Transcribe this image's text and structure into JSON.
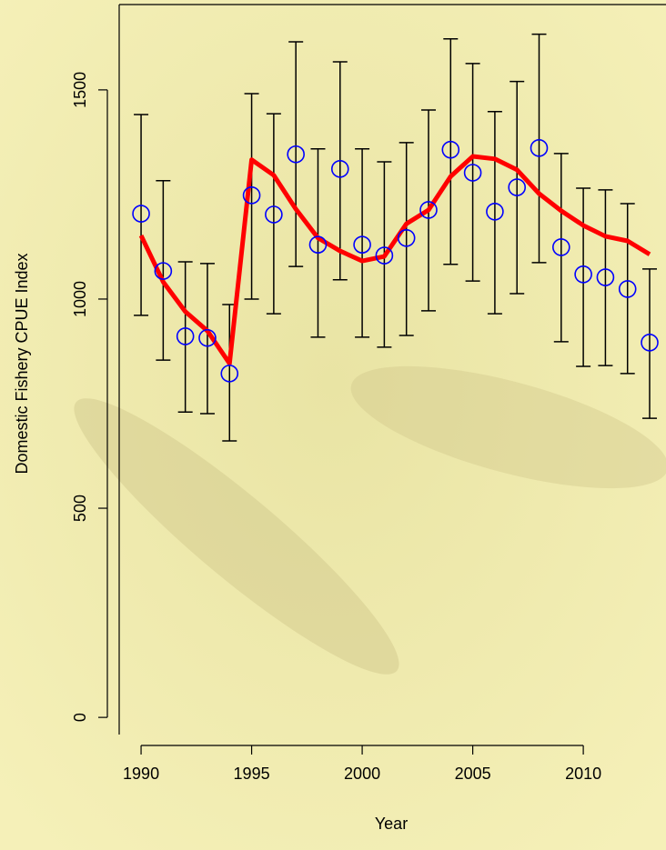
{
  "chart_data": {
    "type": "scatter",
    "x_label": "Year",
    "y_label": "Domestic Fishery CPUE Index",
    "x": [
      1990,
      1991,
      1992,
      1993,
      1994,
      1995,
      1996,
      1997,
      1998,
      1999,
      2000,
      2001,
      2002,
      2003,
      2004,
      2005,
      2006,
      2007,
      2008,
      2009,
      2010,
      2011,
      2012,
      2013
    ],
    "points": {
      "color": "#0000ff",
      "values": [
        1204,
        1067,
        911,
        907,
        822,
        1248,
        1202,
        1346,
        1130,
        1311,
        1130,
        1104,
        1146,
        1213,
        1357,
        1302,
        1209,
        1267,
        1361,
        1124,
        1059,
        1052,
        1024,
        896
      ],
      "lower": [
        961,
        854,
        730,
        726,
        661,
        1000,
        965,
        1078,
        909,
        1046,
        909,
        885,
        913,
        972,
        1083,
        1043,
        965,
        1013,
        1087,
        898,
        839,
        841,
        822,
        715
      ],
      "upper": [
        1441,
        1283,
        1089,
        1085,
        987,
        1491,
        1443,
        1615,
        1359,
        1567,
        1359,
        1328,
        1374,
        1452,
        1622,
        1563,
        1448,
        1520,
        1633,
        1348,
        1265,
        1261,
        1228,
        1072
      ]
    },
    "fit": {
      "color": "#ff0000",
      "values": [
        1152,
        1041,
        970,
        924,
        846,
        1333,
        1296,
        1215,
        1146,
        1115,
        1091,
        1102,
        1180,
        1213,
        1293,
        1341,
        1335,
        1309,
        1252,
        1211,
        1176,
        1150,
        1139,
        1107
      ]
    },
    "xlim": [
      1989.01,
      2013.74
    ],
    "ylim": [
      -41,
      1704
    ],
    "xticks": [
      1990,
      1995,
      2000,
      2005,
      2010
    ],
    "yticks": [
      0,
      500,
      1000,
      1500
    ]
  }
}
